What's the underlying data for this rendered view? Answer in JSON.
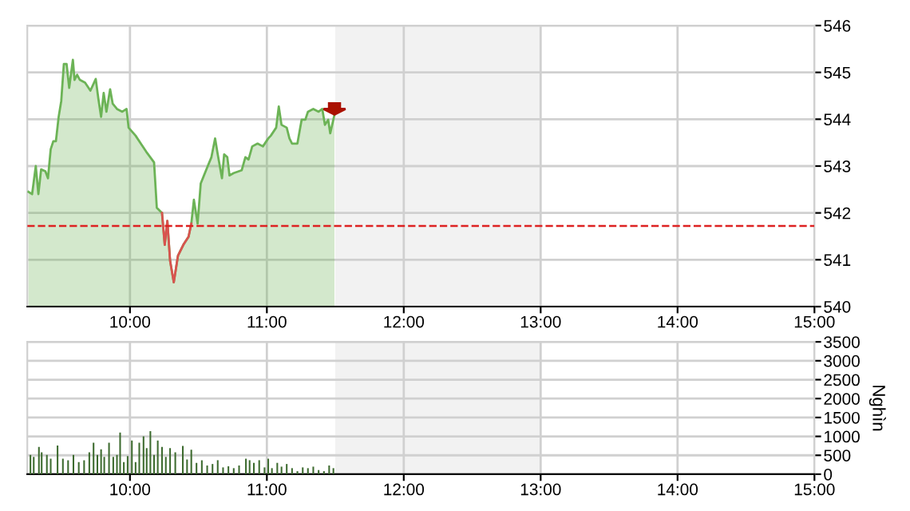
{
  "chart_data": [
    {
      "type": "area",
      "xlim": [
        9.25,
        15
      ],
      "ylim": [
        540,
        546
      ],
      "xticks": [
        {
          "value": 10,
          "label": "10:00"
        },
        {
          "value": 11,
          "label": "11:00"
        },
        {
          "value": 12,
          "label": "12:00"
        },
        {
          "value": 13,
          "label": "13:00"
        },
        {
          "value": 14,
          "label": "14:00"
        },
        {
          "value": 15,
          "label": "15:00"
        }
      ],
      "yticks": [
        540,
        541,
        542,
        543,
        544,
        545,
        546
      ],
      "grid": true,
      "ref_lines": [
        {
          "axis": "y",
          "value": 541.72,
          "color": "#dd2222",
          "line_style": "dashed"
        }
      ],
      "bands": [
        {
          "axis": "x",
          "from": 11.5,
          "to": 13,
          "color": "#f2f2f2"
        }
      ],
      "series": [
        {
          "type": "area",
          "color": "#6cb356",
          "x": [
            9.258,
            9.285,
            9.312,
            9.331,
            9.351,
            9.382,
            9.401,
            9.421,
            9.44,
            9.459,
            9.479,
            9.498,
            9.517,
            9.537,
            9.556,
            9.583,
            9.595,
            9.614,
            9.634,
            9.672,
            9.711,
            9.75,
            9.769,
            9.789,
            9.808,
            9.828,
            9.855,
            9.874,
            9.905,
            9.944,
            9.975,
            9.99,
            10.041,
            10.079,
            10.118,
            10.176,
            10.196,
            10.234,
            10.254,
            10.273,
            10.293,
            10.32,
            10.351,
            10.39,
            10.428,
            10.448,
            10.467,
            10.494,
            10.517,
            10.564,
            10.595,
            10.622,
            10.641,
            10.672,
            10.688,
            10.711,
            10.727,
            10.758,
            10.816,
            10.843,
            10.866,
            10.893,
            10.932,
            10.971,
            11.01,
            11.029,
            11.068,
            11.087,
            11.107,
            11.145,
            11.165,
            11.184,
            11.223,
            11.254,
            11.281,
            11.3,
            11.339,
            11.378,
            11.405,
            11.424,
            11.448,
            11.463,
            11.494
          ],
          "values": [
            542.45,
            542.4,
            543.0,
            542.4,
            542.93,
            542.89,
            542.74,
            543.36,
            543.53,
            543.53,
            544.05,
            544.39,
            545.18,
            545.18,
            544.67,
            545.27,
            544.84,
            544.95,
            544.84,
            544.78,
            544.61,
            544.86,
            544.44,
            544.05,
            544.56,
            544.16,
            544.64,
            544.33,
            544.22,
            544.16,
            544.22,
            543.82,
            543.65,
            543.48,
            543.31,
            543.08,
            542.11,
            542.0,
            541.32,
            541.83,
            540.98,
            540.52,
            541.09,
            541.32,
            541.49,
            541.77,
            542.28,
            541.77,
            542.63,
            542.97,
            543.19,
            543.59,
            543.25,
            542.74,
            543.25,
            543.19,
            542.8,
            542.85,
            542.91,
            543.19,
            543.14,
            543.42,
            543.48,
            543.42,
            543.59,
            543.65,
            543.82,
            544.27,
            543.88,
            543.82,
            543.59,
            543.48,
            543.48,
            543.99,
            543.99,
            544.16,
            544.22,
            544.16,
            544.22,
            543.88,
            543.99,
            543.7,
            544.1
          ]
        },
        {
          "type": "line",
          "color": "#d9534f",
          "x": [
            10.234,
            10.254,
            10.273,
            10.293,
            10.32,
            10.351,
            10.39,
            10.428,
            10.448
          ],
          "values": [
            542.0,
            541.32,
            541.83,
            540.98,
            540.52,
            541.09,
            541.32,
            541.49,
            541.77
          ]
        }
      ]
    },
    {
      "type": "bar",
      "xlim": [
        9.25,
        15
      ],
      "ylim": [
        0,
        3500
      ],
      "ylabel": "Nghìn",
      "xticks": [
        {
          "value": 10,
          "label": "10:00"
        },
        {
          "value": 11,
          "label": "11:00"
        },
        {
          "value": 12,
          "label": "12:00"
        },
        {
          "value": 13,
          "label": "13:00"
        },
        {
          "value": 14,
          "label": "14:00"
        },
        {
          "value": 15,
          "label": "15:00"
        }
      ],
      "yticks": [
        0,
        500,
        1000,
        1500,
        2000,
        2500,
        3000,
        3500
      ],
      "grid": true,
      "bands": [
        {
          "axis": "x",
          "from": 11.5,
          "to": 13,
          "color": "#f2f2f2"
        }
      ],
      "series": [
        {
          "color": "#3d6b2f",
          "x": [
            9.273,
            9.297,
            9.335,
            9.355,
            9.393,
            9.421,
            9.471,
            9.51,
            9.548,
            9.587,
            9.626,
            9.665,
            9.703,
            9.734,
            9.762,
            9.789,
            9.812,
            9.847,
            9.878,
            9.905,
            9.928,
            9.955,
            9.983,
            10.014,
            10.041,
            10.068,
            10.099,
            10.122,
            10.149,
            10.176,
            10.203,
            10.234,
            10.262,
            10.293,
            10.331,
            10.386,
            10.417,
            10.448,
            10.486,
            10.525,
            10.564,
            10.603,
            10.641,
            10.68,
            10.719,
            10.758,
            10.797,
            10.847,
            10.874,
            10.905,
            10.944,
            10.983,
            11.01,
            11.037,
            11.076,
            11.107,
            11.145,
            11.184,
            11.223,
            11.262,
            11.3,
            11.339,
            11.378,
            11.417,
            11.455,
            11.486
          ],
          "values": [
            510,
            460,
            720,
            580,
            510,
            410,
            760,
            410,
            370,
            510,
            320,
            370,
            580,
            830,
            510,
            660,
            460,
            830,
            460,
            510,
            1100,
            320,
            480,
            890,
            320,
            830,
            1000,
            690,
            1140,
            510,
            890,
            720,
            460,
            690,
            580,
            750,
            390,
            650,
            300,
            370,
            230,
            270,
            370,
            180,
            210,
            160,
            230,
            410,
            370,
            300,
            370,
            180,
            410,
            160,
            300,
            200,
            270,
            160,
            80,
            180,
            160,
            200,
            110,
            80,
            230,
            160
          ]
        }
      ]
    }
  ]
}
